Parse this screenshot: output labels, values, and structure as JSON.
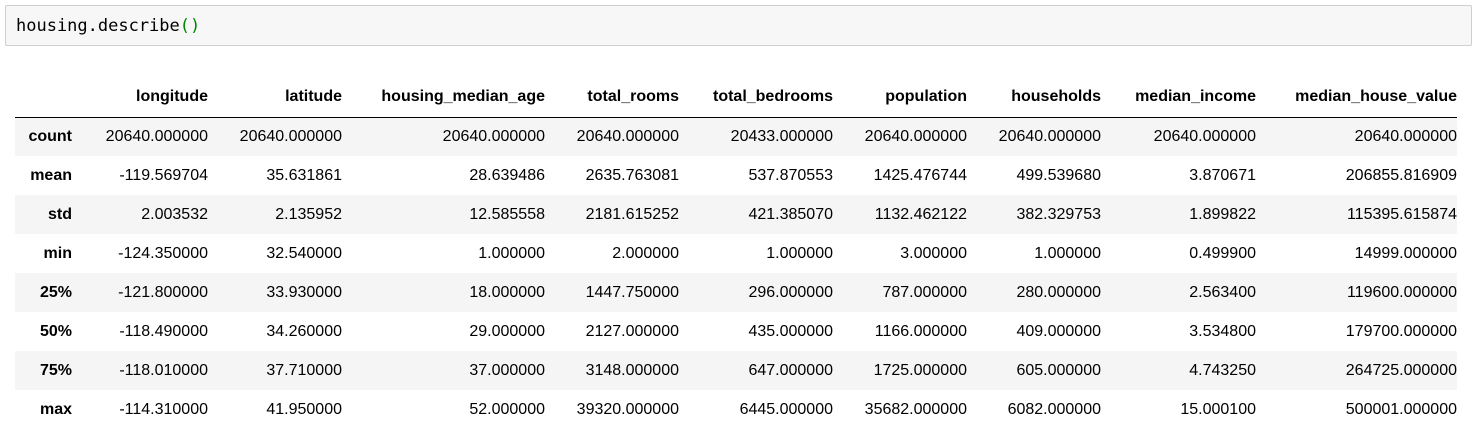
{
  "code_cell": {
    "text_prefix": "housing.describe",
    "text_parens": "()"
  },
  "table": {
    "columns": [
      "longitude",
      "latitude",
      "housing_median_age",
      "total_rooms",
      "total_bedrooms",
      "population",
      "households",
      "median_income",
      "median_house_value"
    ],
    "rows": [
      {
        "index": "count",
        "values": [
          "20640.000000",
          "20640.000000",
          "20640.000000",
          "20640.000000",
          "20433.000000",
          "20640.000000",
          "20640.000000",
          "20640.000000",
          "20640.000000"
        ]
      },
      {
        "index": "mean",
        "values": [
          "-119.569704",
          "35.631861",
          "28.639486",
          "2635.763081",
          "537.870553",
          "1425.476744",
          "499.539680",
          "3.870671",
          "206855.816909"
        ]
      },
      {
        "index": "std",
        "values": [
          "2.003532",
          "2.135952",
          "12.585558",
          "2181.615252",
          "421.385070",
          "1132.462122",
          "382.329753",
          "1.899822",
          "115395.615874"
        ]
      },
      {
        "index": "min",
        "values": [
          "-124.350000",
          "32.540000",
          "1.000000",
          "2.000000",
          "1.000000",
          "3.000000",
          "1.000000",
          "0.499900",
          "14999.000000"
        ]
      },
      {
        "index": "25%",
        "values": [
          "-121.800000",
          "33.930000",
          "18.000000",
          "1447.750000",
          "296.000000",
          "787.000000",
          "280.000000",
          "2.563400",
          "119600.000000"
        ]
      },
      {
        "index": "50%",
        "values": [
          "-118.490000",
          "34.260000",
          "29.000000",
          "2127.000000",
          "435.000000",
          "1166.000000",
          "409.000000",
          "3.534800",
          "179700.000000"
        ]
      },
      {
        "index": "75%",
        "values": [
          "-118.010000",
          "37.710000",
          "37.000000",
          "3148.000000",
          "647.000000",
          "1725.000000",
          "605.000000",
          "4.743250",
          "264725.000000"
        ]
      },
      {
        "index": "max",
        "values": [
          "-114.310000",
          "41.950000",
          "52.000000",
          "39320.000000",
          "6445.000000",
          "35682.000000",
          "6082.000000",
          "15.000100",
          "500001.000000"
        ]
      }
    ]
  }
}
